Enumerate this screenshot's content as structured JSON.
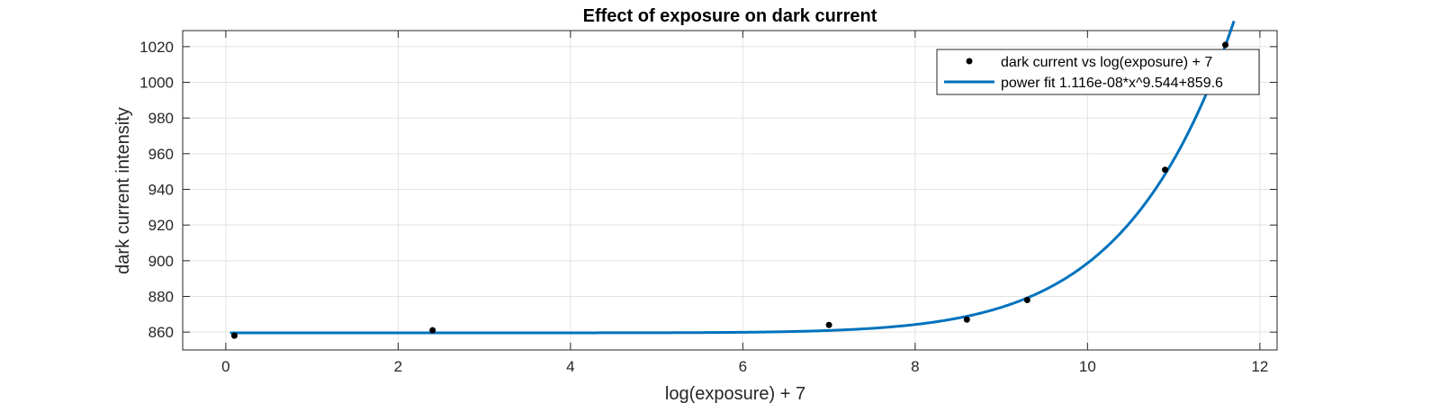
{
  "chart_data": {
    "type": "scatter",
    "title": "Effect of exposure on dark current",
    "xlabel": "log(exposure) + 7",
    "ylabel": "dark current intensity",
    "xlim": [
      -0.5,
      12.2
    ],
    "ylim": [
      850,
      1029
    ],
    "xticks": [
      "0",
      "2",
      "4",
      "6",
      "8",
      "10",
      "12"
    ],
    "yticks": [
      "860",
      "880",
      "900",
      "920",
      "940",
      "960",
      "980",
      "1000",
      "1020"
    ],
    "grid": true,
    "legend_position": "top-right",
    "colors": {
      "points": "#000000",
      "fit": "#0072BD"
    },
    "series": [
      {
        "name": "dark current vs log(exposure) + 7",
        "kind": "scatter",
        "x": [
          0.1,
          2.4,
          7.0,
          8.6,
          9.3,
          10.9,
          11.6
        ],
        "y": [
          858,
          861,
          864,
          867,
          878,
          951,
          1021
        ]
      },
      {
        "name": "power fit 1.116e-08*x^9.544+859.6",
        "kind": "line",
        "model": {
          "a": 1.116e-08,
          "b": 9.544,
          "c": 859.6
        },
        "x_range": [
          0.05,
          11.7
        ]
      }
    ]
  }
}
